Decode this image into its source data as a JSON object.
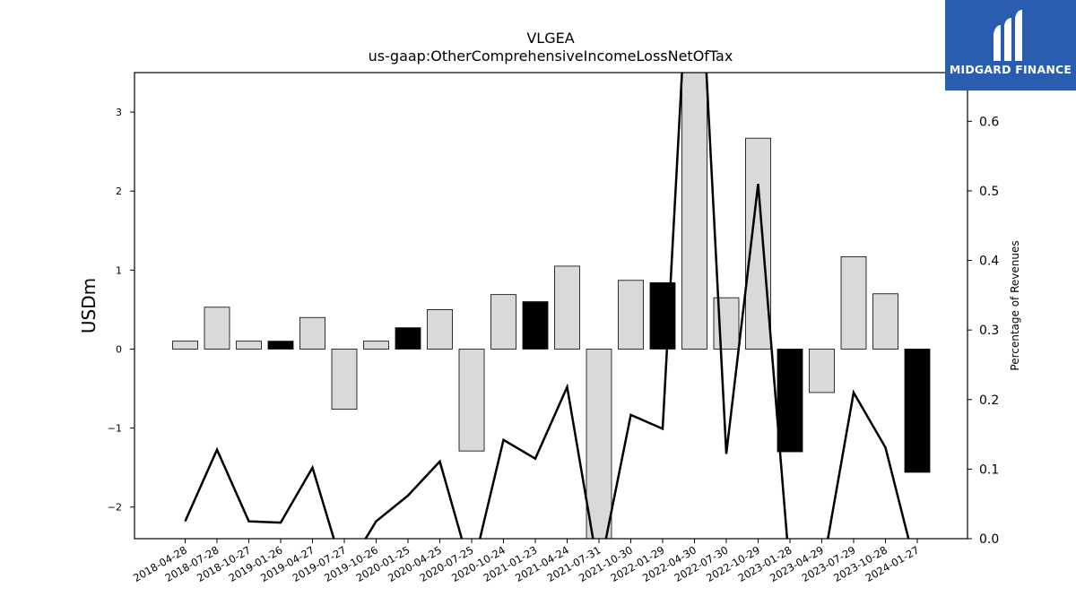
{
  "chart_data": {
    "type": "bar",
    "title": "VLGEA",
    "subtitle": "us-gaap:OtherComprehensiveIncomeLossNetOfTax",
    "ylabel": "USDm",
    "y2label": "Percentage of Revenues",
    "ylim": [
      -2.4,
      3.5
    ],
    "y2lim": [
      0.0,
      0.67
    ],
    "yticks": [
      -2,
      -1,
      0,
      1,
      2,
      3
    ],
    "y2ticks": [
      0.0,
      0.1,
      0.2,
      0.3,
      0.4,
      0.5,
      0.6
    ],
    "categories": [
      "2018-04-28",
      "2018-07-28",
      "2018-10-27",
      "2019-01-26",
      "2019-04-27",
      "2019-07-27",
      "2019-10-26",
      "2020-01-25",
      "2020-04-25",
      "2020-07-25",
      "2020-10-24",
      "2021-01-23",
      "2021-04-24",
      "2021-07-31",
      "2021-10-30",
      "2022-01-29",
      "2022-04-30",
      "2022-07-30",
      "2022-10-29",
      "2023-01-28",
      "2023-04-29",
      "2023-07-29",
      "2023-10-28",
      "2024-01-27"
    ],
    "series": [
      {
        "type": "bar",
        "values": [
          0.1,
          0.53,
          0.1,
          0.1,
          0.4,
          -0.76,
          0.1,
          0.27,
          0.5,
          -1.29,
          0.69,
          0.6,
          1.05,
          -2.45,
          0.87,
          0.84,
          3.55,
          0.65,
          2.67,
          -1.3,
          -0.55,
          1.17,
          0.7,
          -1.56
        ],
        "highlight": [
          false,
          false,
          false,
          true,
          false,
          false,
          false,
          true,
          false,
          false,
          false,
          true,
          false,
          false,
          false,
          true,
          false,
          false,
          false,
          true,
          false,
          false,
          false,
          true
        ],
        "colors": {
          "normal": "#d9d9d9",
          "highlight": "#000000"
        }
      },
      {
        "type": "line",
        "axis": "right",
        "values": [
          0.025,
          0.128,
          0.025,
          0.023,
          0.102,
          -0.05,
          0.025,
          0.062,
          0.111,
          -0.05,
          0.142,
          0.115,
          0.218,
          -0.05,
          0.178,
          0.158,
          1.0,
          0.122,
          0.51,
          -0.05,
          -0.05,
          0.21,
          0.131,
          -0.05
        ],
        "color": "#000000"
      }
    ]
  },
  "logo": {
    "text": "MIDGARD FINANCE",
    "background": "#2a5db0"
  }
}
